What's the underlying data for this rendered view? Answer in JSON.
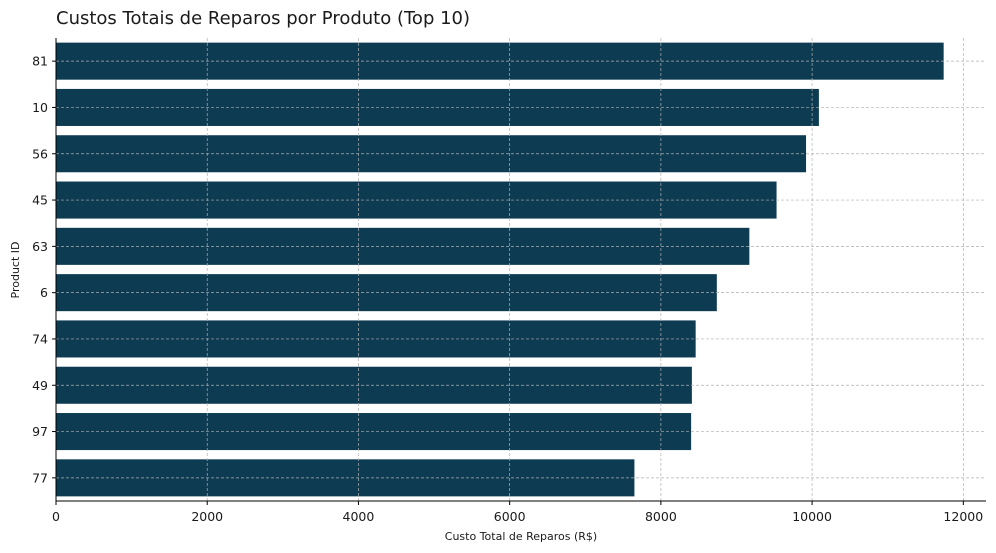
{
  "chart_data": {
    "type": "bar",
    "orientation": "horizontal",
    "title": "Custos Totais de Reparos por Produto (Top 10)",
    "xlabel": "Custo Total de Reparos (R$)",
    "ylabel": "Product ID",
    "categories": [
      "81",
      "10",
      "56",
      "45",
      "63",
      "6",
      "74",
      "49",
      "97",
      "77"
    ],
    "values": [
      11740,
      10090,
      9920,
      9530,
      9170,
      8740,
      8460,
      8410,
      8400,
      7650
    ],
    "xlim": [
      0,
      12300
    ],
    "xticks": [
      0,
      2000,
      4000,
      6000,
      8000,
      10000,
      12000
    ],
    "bar_color": "#0d3b52",
    "grid": true
  }
}
